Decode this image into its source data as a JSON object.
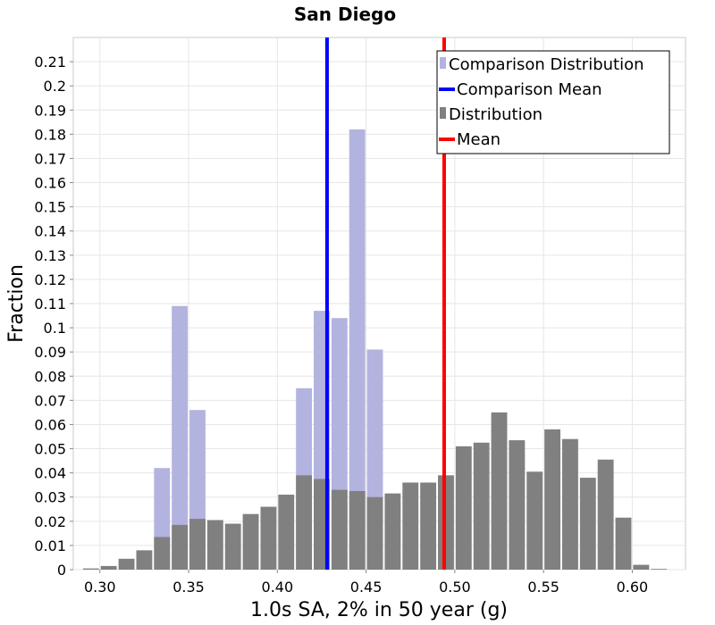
{
  "chart_data": {
    "type": "bar",
    "title": "San Diego",
    "xlabel": "1.0s SA, 2% in 50 year (g)",
    "ylabel": "Fraction",
    "xlim": [
      0.285,
      0.63
    ],
    "ylim": [
      0,
      0.22
    ],
    "bin_width": 0.01,
    "x_ticks": [
      "0.30",
      "0.35",
      "0.40",
      "0.45",
      "0.50",
      "0.55",
      "0.60"
    ],
    "x_tick_values": [
      0.3,
      0.35,
      0.4,
      0.45,
      0.5,
      0.55,
      0.6
    ],
    "y_ticks": [
      "0",
      "0.01",
      "0.02",
      "0.03",
      "0.04",
      "0.05",
      "0.06",
      "0.07",
      "0.08",
      "0.09",
      "0.1",
      "0.11",
      "0.12",
      "0.13",
      "0.14",
      "0.15",
      "0.16",
      "0.17",
      "0.18",
      "0.19",
      "0.2",
      "0.21"
    ],
    "y_tick_values": [
      0,
      0.01,
      0.02,
      0.03,
      0.04,
      0.05,
      0.06,
      0.07,
      0.08,
      0.09,
      0.1,
      0.11,
      0.12,
      0.13,
      0.14,
      0.15,
      0.16,
      0.17,
      0.18,
      0.19,
      0.2,
      0.21
    ],
    "grid": true,
    "legend_position": "top-right",
    "series": [
      {
        "name": "Comparison Distribution",
        "kind": "histogram",
        "color": "#b3b3e0",
        "bins": [
          0.335,
          0.345,
          0.355,
          0.415,
          0.425,
          0.435,
          0.445,
          0.455
        ],
        "values": [
          0.042,
          0.109,
          0.066,
          0.075,
          0.107,
          0.104,
          0.182,
          0.091
        ]
      },
      {
        "name": "Comparison Mean",
        "kind": "vline",
        "color": "#0000ff",
        "value": 0.428
      },
      {
        "name": "Distribution",
        "kind": "histogram",
        "color": "#808080",
        "bins": [
          0.295,
          0.305,
          0.315,
          0.325,
          0.335,
          0.345,
          0.355,
          0.365,
          0.375,
          0.385,
          0.395,
          0.405,
          0.415,
          0.425,
          0.435,
          0.445,
          0.455,
          0.465,
          0.475,
          0.485,
          0.495,
          0.505,
          0.515,
          0.525,
          0.535,
          0.545,
          0.555,
          0.565,
          0.575,
          0.585,
          0.595,
          0.605,
          0.615
        ],
        "values": [
          0.0005,
          0.0015,
          0.0045,
          0.008,
          0.0135,
          0.0185,
          0.021,
          0.0205,
          0.019,
          0.023,
          0.026,
          0.031,
          0.039,
          0.0375,
          0.033,
          0.0325,
          0.03,
          0.0315,
          0.036,
          0.036,
          0.039,
          0.051,
          0.0525,
          0.065,
          0.0535,
          0.0405,
          0.058,
          0.054,
          0.038,
          0.0455,
          0.0215,
          0.002,
          0.0003
        ]
      },
      {
        "name": "Mean",
        "kind": "vline",
        "color": "#ff0000",
        "value": 0.494
      }
    ]
  }
}
